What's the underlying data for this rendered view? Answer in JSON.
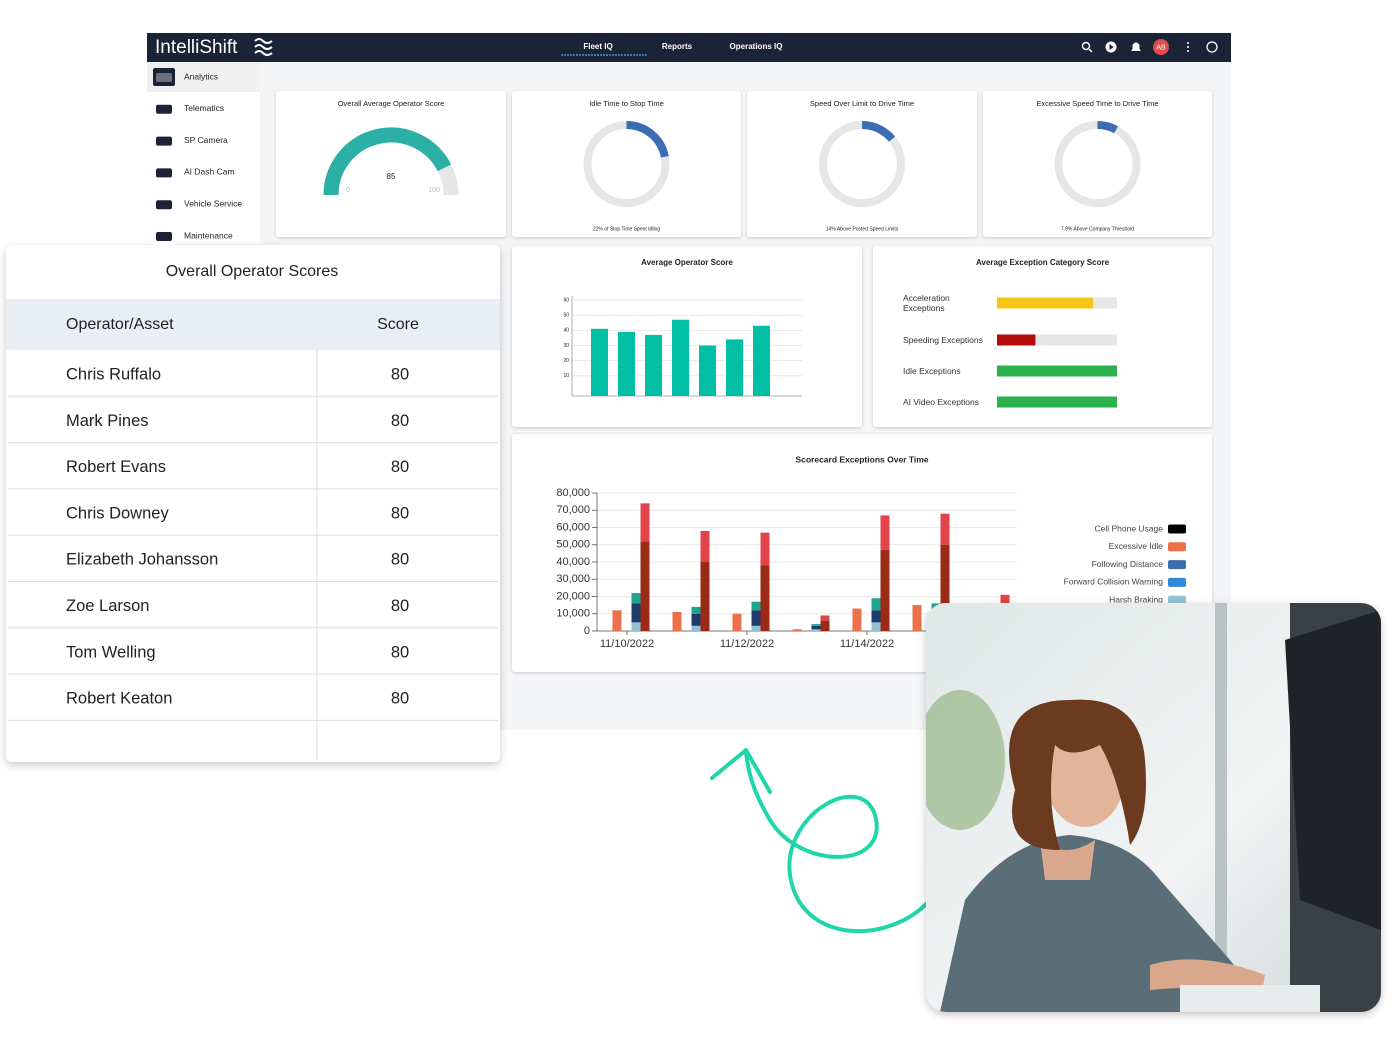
{
  "nav": {
    "brand": "IntelliShift",
    "tabs": [
      "Fleet IQ",
      "Reports",
      "Operations IQ"
    ],
    "avatar": "AB"
  },
  "sidebar": [
    "Analytics",
    "Telematics",
    "SP Camera",
    "AI Dash Cam",
    "Vehicle Service",
    "Maintenance"
  ],
  "chart_data": [
    {
      "type": "gauge",
      "title": "Overall Average Operator Score",
      "value": 85,
      "min": 0,
      "max": 100,
      "color": "#2bb0a6"
    },
    {
      "type": "donut",
      "title": "Idle Time to Stop Time",
      "value": 22,
      "caption": "22% of Stop Time Spent Idling",
      "color": "#3c6cb4"
    },
    {
      "type": "donut",
      "title": "Speed Over Limit to Drive Time",
      "value": 14,
      "caption": "14% Above Posted Speed Limits",
      "color": "#3c6cb4"
    },
    {
      "type": "donut",
      "title": "Excessive Speed Time to Drive Time",
      "value": 7.9,
      "caption": "7.9% Above Company Threshold",
      "color": "#3c6cb4"
    },
    {
      "type": "bar",
      "title": "Average Operator Score",
      "values": [
        41,
        39,
        37,
        47,
        30,
        34,
        43
      ],
      "color": "#00bfa5",
      "ylim": [
        0,
        60
      ],
      "yticks": [
        10,
        20,
        30,
        40,
        50,
        60
      ],
      "grid": true
    },
    {
      "type": "hbar",
      "title": "Average Exception Category Score",
      "categories": [
        "Acceleration Exceptions",
        "Speeding Exceptions",
        "Idle Exceptions",
        "AI Video Exceptions"
      ],
      "values": [
        80,
        32,
        100,
        100
      ],
      "colors": [
        "#f7c315",
        "#b30a0a",
        "#2bb24c",
        "#2bb24c"
      ],
      "xlim": [
        0,
        100
      ]
    },
    {
      "type": "stacked_bar",
      "title": "Scorecard Exceptions Over Time",
      "categories": [
        "11/10/2022",
        null,
        "11/12/2022",
        null,
        "11/14/2022",
        null,
        null
      ],
      "ylim": [
        0,
        80000
      ],
      "yticks": [
        0,
        {
          "value": 10000,
          "label": "10,000"
        },
        {
          "value": 20000,
          "label": "20,000"
        },
        {
          "value": 30000,
          "label": "30,000"
        },
        {
          "value": 40000,
          "label": "40,000"
        },
        {
          "value": 50000,
          "label": "50,000"
        },
        {
          "value": 60000,
          "label": "60,000"
        },
        {
          "value": 70000,
          "label": "70,000"
        },
        {
          "value": 80000,
          "label": "80,000"
        }
      ],
      "series": [
        {
          "name": "Cell Phone Usage",
          "color": "#000000",
          "stack": 0,
          "values": [
            null,
            null,
            null,
            null,
            null,
            null,
            null
          ]
        },
        {
          "name": "Excessive Idle",
          "color": "#ec7049",
          "stack": 0,
          "values": [
            12000,
            11000,
            10000,
            1000,
            13000,
            15000,
            14000
          ]
        },
        {
          "name": "Following Distance",
          "color": "#3d6fad",
          "stack": 1,
          "values": [
            null,
            null,
            null,
            null,
            null,
            null,
            null
          ]
        },
        {
          "name": "Forward Collision Warning",
          "color": "#2f87d8",
          "stack": 1,
          "values": [
            null,
            null,
            null,
            null,
            null,
            null,
            null
          ]
        },
        {
          "name": "Harsh Braking",
          "color": "#93c1d4",
          "stack": 1,
          "values": [
            5000,
            3000,
            3000,
            1000,
            5000,
            5000,
            5000
          ]
        },
        {
          "color": "#1f3b6b",
          "stack": 1,
          "values": [
            11000,
            7000,
            9000,
            2000,
            7000,
            6000,
            6000
          ]
        },
        {
          "color": "#1fa58c",
          "stack": 1,
          "values": [
            6000,
            4000,
            5000,
            1000,
            7000,
            5000,
            5000
          ]
        },
        {
          "color": "#9a2b17",
          "stack": 2,
          "values": [
            52000,
            40000,
            38000,
            6000,
            47000,
            50000,
            15000
          ]
        },
        {
          "color": "#e0444a",
          "stack": 2,
          "values": [
            22000,
            18000,
            19000,
            3000,
            20000,
            18000,
            6000
          ]
        }
      ]
    }
  ],
  "operator_table": {
    "title": "Overall Operator Scores",
    "columns": [
      "Operator/Asset",
      "Score"
    ],
    "rows": [
      [
        "Chris Ruffalo",
        80
      ],
      [
        "Mark Pines",
        80
      ],
      [
        "Robert Evans",
        80
      ],
      [
        "Chris Downey",
        80
      ],
      [
        "Elizabeth Johansson",
        80
      ],
      [
        "Zoe Larson",
        80
      ],
      [
        "Tom Welling",
        80
      ],
      [
        "Robert Keaton",
        80
      ]
    ]
  }
}
